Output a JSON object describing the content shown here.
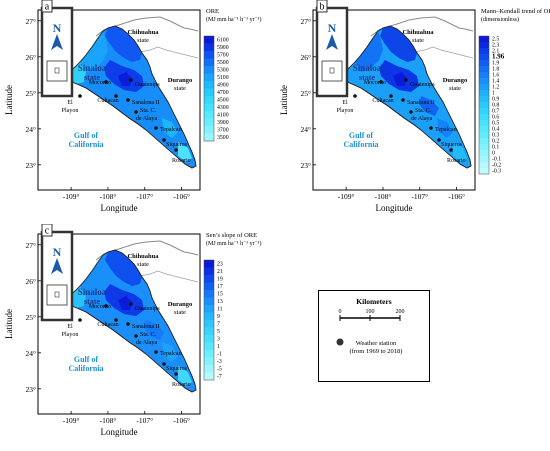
{
  "panels": [
    {
      "letter": "a",
      "legend_title": [
        "ORE",
        "(MJ mm ha⁻¹ h⁻¹ yr⁻¹)"
      ],
      "legend_ticks": [
        "6100",
        "5900",
        "5700",
        "5500",
        "5300",
        "5100",
        "4900",
        "4700",
        "4500",
        "4300",
        "4100",
        "3900",
        "3700",
        "3500"
      ],
      "colors": [
        "#0a1ad8",
        "#0c34e6",
        "#0f52ef",
        "#1270f4",
        "#168df8",
        "#1aa5fa",
        "#1fbafb",
        "#27cbfc",
        "#33d8fd",
        "#42e2fd",
        "#55e9fd",
        "#6aeefd",
        "#82f2fe",
        "#9cf6fe"
      ]
    },
    {
      "letter": "b",
      "legend_title": [
        "Mann–Kendall trend of ORE",
        "(dimensionless)"
      ],
      "legend_ticks": [
        "2.5",
        "2.3",
        "2.1",
        "1.96",
        "1.9",
        "1.8",
        "1.6",
        "1.4",
        "1.2",
        "1",
        "0.9",
        "0.8",
        "0.7",
        "0.6",
        "0.5",
        "0.4",
        "0.3",
        "0.2",
        "0.1",
        "0",
        "-0.1",
        "-0.2",
        "-0.3"
      ],
      "colors": [
        "#0a1ad8",
        "#0b2ae0",
        "#0d3be7",
        "#0f4ced",
        "#115df1",
        "#136ef4",
        "#157ff7",
        "#1890f9",
        "#1ba0fa",
        "#1fb0fb",
        "#24befc",
        "#2acafc",
        "#32d4fd",
        "#3cdcfd",
        "#47e3fd",
        "#54e8fd",
        "#62ecfd",
        "#72f0fe",
        "#82f3fe",
        "#93f5fe",
        "#a4f7fe",
        "#b4f9fe",
        "#c4fbfe"
      ],
      "highlight": "1.96"
    },
    {
      "letter": "c",
      "legend_title": [
        "Sen’s slope of ORE",
        "(MJ mm ha⁻¹ h⁻¹ yr⁻¹)"
      ],
      "legend_ticks": [
        "23",
        "21",
        "19",
        "17",
        "15",
        "13",
        "11",
        "9",
        "7",
        "5",
        "3",
        "1",
        "-1",
        "-3",
        "-5",
        "-7"
      ],
      "colors": [
        "#0a1ad8",
        "#0c30e4",
        "#0e48ec",
        "#1260f2",
        "#1678f6",
        "#1a8ff9",
        "#1fa4fa",
        "#25b7fb",
        "#2dc7fc",
        "#38d4fd",
        "#46dffd",
        "#58e7fd",
        "#6dedfd",
        "#85f2fe",
        "#9ef5fe",
        "#b6f9fe"
      ]
    }
  ],
  "map": {
    "lat_labels": [
      "27°",
      "26°",
      "25°",
      "24°",
      "23°"
    ],
    "lon_labels": [
      "-109°",
      "-108°",
      "-107°",
      "-106°"
    ],
    "xlabel": "Longitude",
    "ylabel": "Latitude",
    "north_letter": "N",
    "gulf_label": [
      "Gulf of",
      "California"
    ],
    "sinaloa_label": [
      "Sinaloa",
      "state"
    ],
    "chihuahua_label": [
      "Chihuahua",
      "state"
    ],
    "durango_label": [
      "Durango",
      "state"
    ],
    "stations": [
      "Mocorito",
      "Guatenipa",
      "El",
      "Playon",
      "Culiacan",
      "Sanalona II",
      "Sta. C.",
      "de Alaya",
      "Tepalcan",
      "Siqueros",
      "Rosario"
    ]
  },
  "key": {
    "scale_title": "Kilometers",
    "scale_ticks": [
      "0",
      "100",
      "200"
    ],
    "station_label": [
      "Weather station",
      "(from 1969 to 2018)"
    ]
  }
}
